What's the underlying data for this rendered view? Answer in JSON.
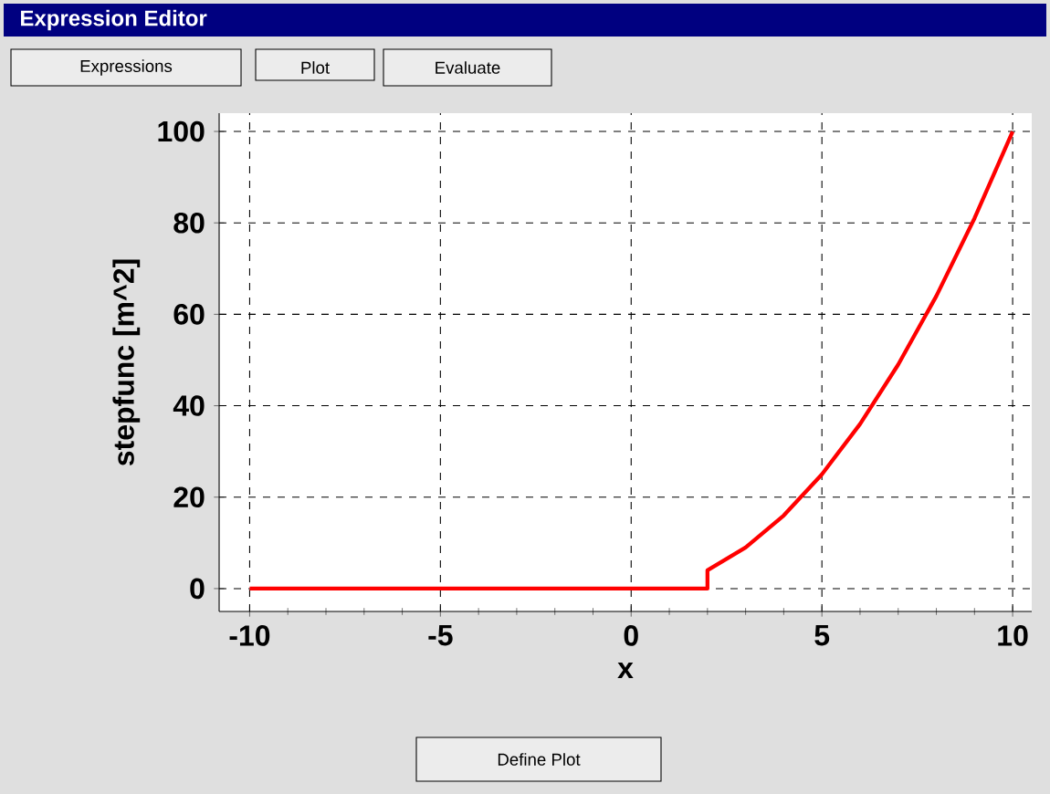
{
  "chart_data": {
    "type": "line",
    "title": "Expression Editor",
    "xlabel": "x",
    "ylabel": "stepfunc [m^2]",
    "annotations": [
      "Expressions",
      "Plot",
      "Evaluate",
      "Define Plot"
    ],
    "series": [
      {
        "color": "#ff0000",
        "x": [
          -10,
          2,
          2,
          3,
          4,
          5,
          6,
          7,
          8,
          9,
          10
        ],
        "values": [
          0,
          0,
          4,
          9,
          16,
          25,
          36,
          49,
          64,
          81,
          100
        ]
      }
    ],
    "xlim": [
      -10.8,
      10.5
    ],
    "ylim": [
      -5,
      104
    ],
    "xticks": [
      -10,
      -5,
      0,
      5,
      10
    ],
    "yticks": [
      0,
      20,
      40,
      60,
      80,
      100
    ],
    "grid": true,
    "marker": "none",
    "line_style": "solid"
  }
}
